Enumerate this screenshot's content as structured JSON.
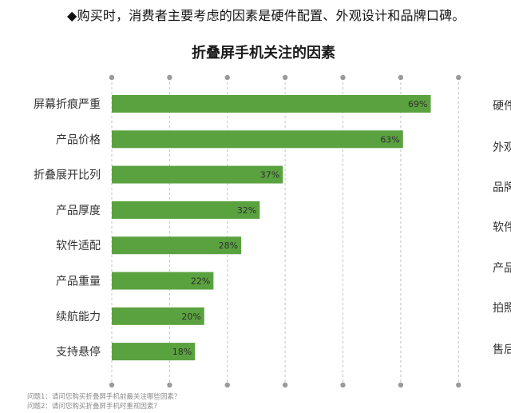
{
  "headline": "◆购买时，消费者主要考虑的因素是硬件配置、外观设计和品牌口碑。",
  "chart_data": {
    "type": "bar",
    "orientation": "horizontal",
    "title": "折叠屏手机关注的因素",
    "categories": [
      "屏幕折痕严重",
      "产品价格",
      "折叠展开比列",
      "产品厚度",
      "软件适配",
      "产品重量",
      "续航能力",
      "支持悬停"
    ],
    "values": [
      69,
      63,
      37,
      32,
      28,
      22,
      20,
      18
    ],
    "value_suffix": "%",
    "xlim": [
      0,
      75
    ],
    "grid": true,
    "bar_color": "#5aa23f"
  },
  "second_chart_partial": {
    "labels": [
      "硬件",
      "外观",
      "品牌",
      "软件",
      "产品",
      "拍照",
      "售后"
    ]
  },
  "footnotes": [
    "问题1：请问您购买折叠屏手机前最关注哪些因素？",
    "问题2：请问您购买折叠屏手机时重视因素？"
  ]
}
